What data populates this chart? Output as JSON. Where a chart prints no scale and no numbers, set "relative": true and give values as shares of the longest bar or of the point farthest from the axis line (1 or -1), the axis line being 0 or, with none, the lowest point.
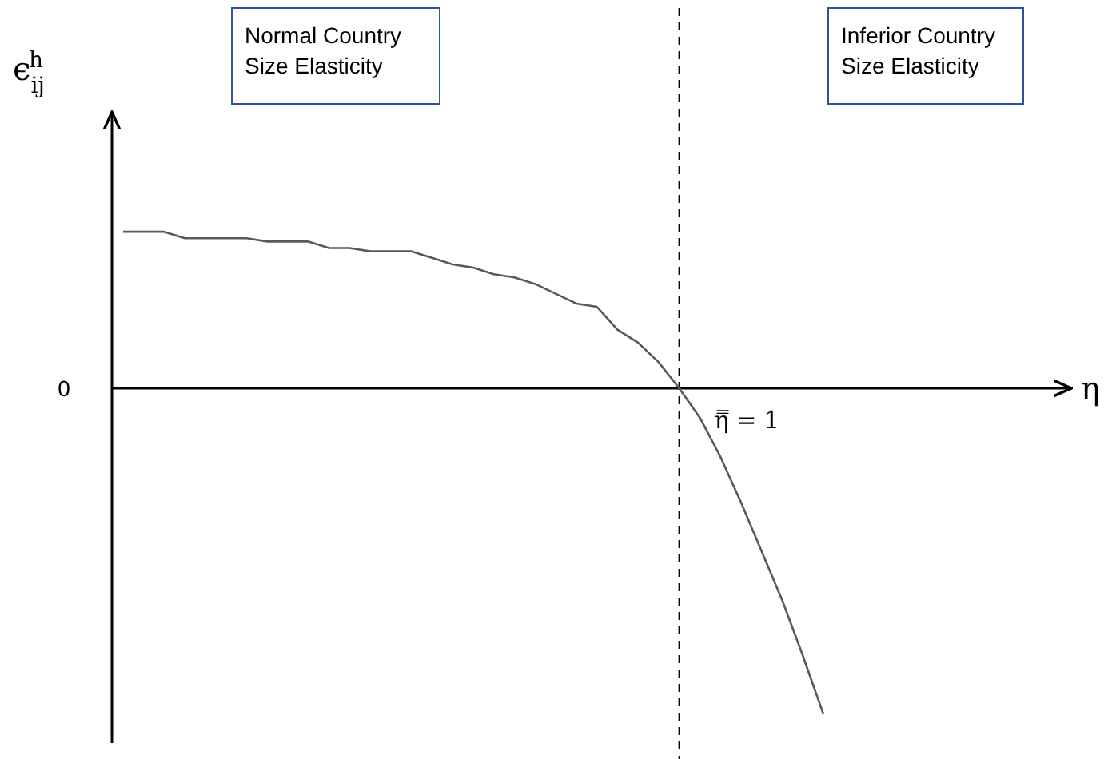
{
  "chart_data": {
    "type": "line",
    "relative": true,
    "ylabel": "ϵ$_{ij}$$^{h}$",
    "categories": [
      null,
      null,
      null,
      null,
      null,
      null,
      null,
      null,
      null,
      null,
      null,
      null,
      null,
      null,
      null,
      null,
      null,
      null,
      null,
      null,
      null,
      null,
      null,
      null,
      null,
      null,
      null,
      null,
      null,
      null,
      null,
      null,
      null,
      null,
      null
    ],
    "series": [
      {
        "color": "#595959",
        "values": [
          0.48,
          0.48,
          0.48,
          0.46,
          0.46,
          0.46,
          0.46,
          0.45,
          0.45,
          0.45,
          0.43,
          0.43,
          0.42,
          0.42,
          0.42,
          0.4,
          0.38,
          0.37,
          0.35,
          0.34,
          0.32,
          0.29,
          0.26,
          0.25,
          0.18,
          0.14,
          0.08,
          0,
          -0.09,
          -0.21,
          -0.35,
          -0.5,
          -0.65,
          -0.82,
          -1
        ]
      }
    ],
    "annotations": [
      "0",
      "η̿ = 1",
      "η",
      "Normal Country\nSize Elasticity",
      "Inferior Country\nSize Elasticity"
    ]
  }
}
